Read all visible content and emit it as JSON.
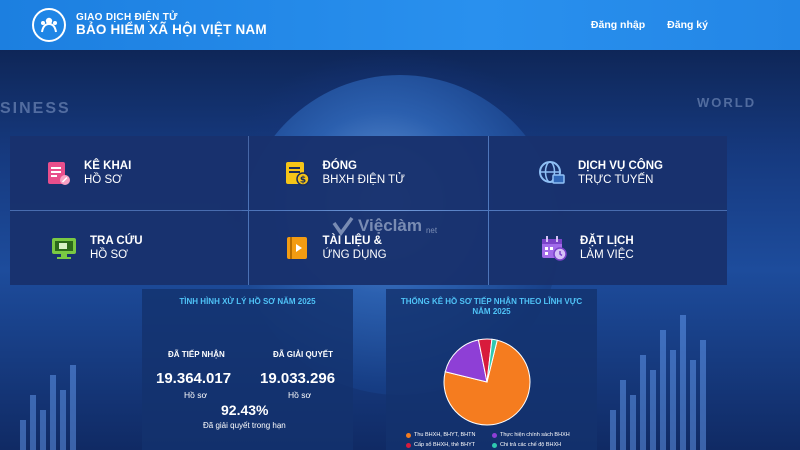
{
  "header": {
    "subtitle": "GIAO DỊCH ĐIỆN TỬ",
    "title": "BẢO HIỂM XÃ HỘI VIỆT NAM",
    "login": "Đăng nhập",
    "register": "Đăng ký"
  },
  "background": {
    "left_word": "SINESS",
    "right_word": "WORLD"
  },
  "tiles": [
    {
      "title": "KÊ KHAI",
      "sub": "HỒ SƠ",
      "icon": "document-pen-icon",
      "color": "#e84f8c"
    },
    {
      "title": "ĐÓNG",
      "sub": "BHXH ĐIỆN TỬ",
      "icon": "bill-dollar-icon",
      "color": "#f5c518"
    },
    {
      "title": "DỊCH VỤ CÔNG",
      "sub": "TRỰC TUYẾN",
      "icon": "globe-screen-icon",
      "color": "#7fb3f0"
    },
    {
      "title": "TRA CỨU",
      "sub": "HỒ SƠ",
      "icon": "monitor-search-icon",
      "color": "#7ac943"
    },
    {
      "title": "TÀI LIỆU &",
      "sub": "ỨNG DỤNG",
      "icon": "book-play-icon",
      "color": "#f39c12"
    },
    {
      "title": "ĐẶT LỊCH",
      "sub": "LÀM VIỆC",
      "icon": "calendar-clock-icon",
      "color": "#a26bea"
    }
  ],
  "watermark": {
    "text": "Việclàm",
    "suffix": "net"
  },
  "stats_panel": {
    "title": "TÌNH HÌNH XỬ LÝ HỒ SƠ NĂM 2025",
    "received_label": "ĐÃ TIẾP NHẬN",
    "received_value": "19.364.017",
    "received_unit": "Hồ sơ",
    "resolved_label": "ĐÃ GIẢI QUYẾT",
    "resolved_value": "19.033.296",
    "resolved_unit": "Hồ sơ",
    "percent": "92.43%",
    "percent_note": "Đã giải quyết trong hạn"
  },
  "chart_panel": {
    "title_line1": "THỐNG KÊ HỒ SƠ TIẾP NHẬN THEO LĨNH VỰC",
    "title_line2": "NĂM 2025"
  },
  "chart_data": {
    "type": "pie",
    "title": "THỐNG KÊ HỒ SƠ TIẾP NHẬN THEO LĨNH VỰC NĂM 2025",
    "slices": [
      {
        "label": "Thu BHXH, BHYT, BHTN",
        "value": 75,
        "color": "#f57c1f"
      },
      {
        "label": "Thực hiện chính sách BHXH",
        "value": 18,
        "color": "#8e3fd6"
      },
      {
        "label": "Cấp sổ BHXH, thẻ BHYT",
        "value": 5,
        "color": "#d81b3c"
      },
      {
        "label": "Chi trả các chế độ BHXH",
        "value": 2,
        "color": "#2fc9b0"
      }
    ],
    "legend_placement": "bottom"
  }
}
